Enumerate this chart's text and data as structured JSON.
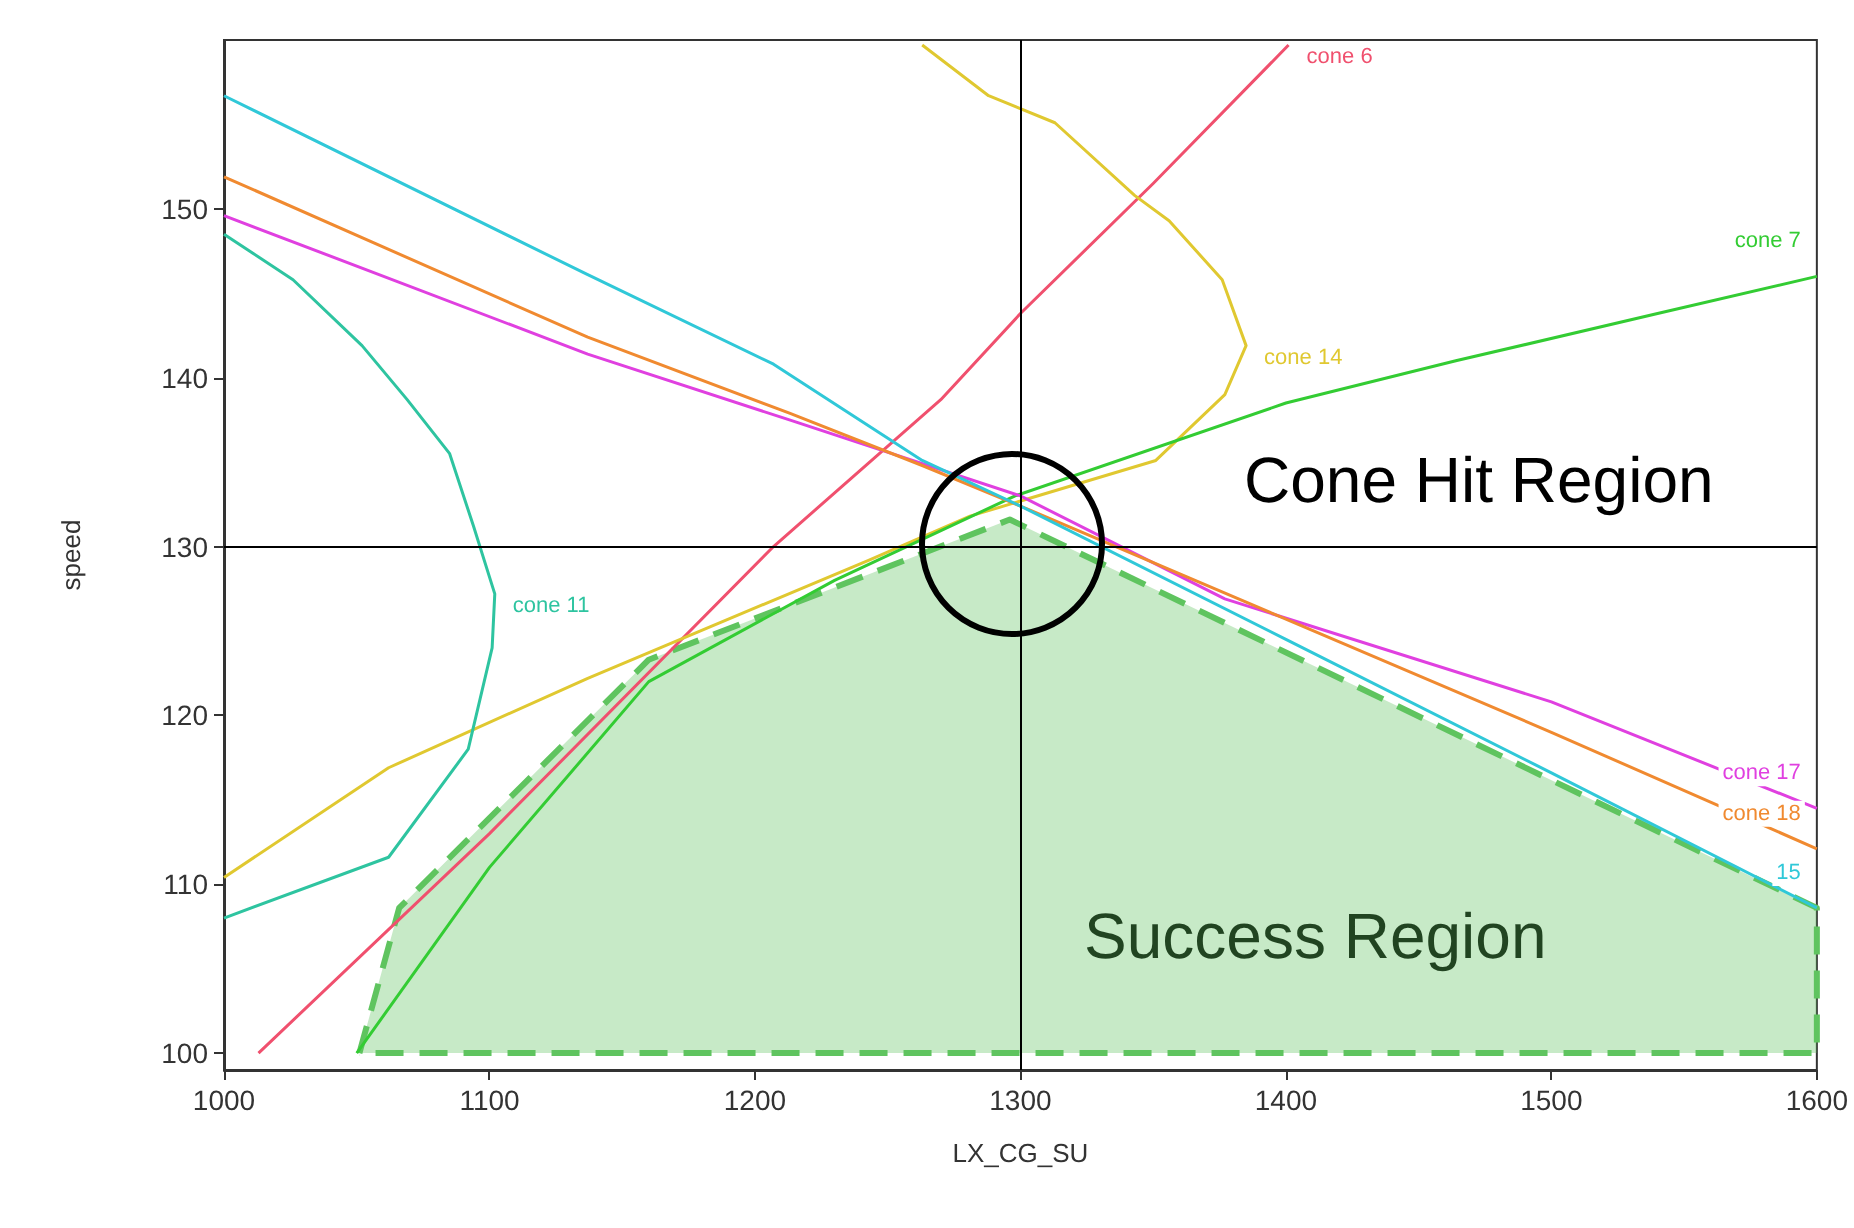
{
  "chart_data": {
    "type": "line",
    "xlabel": "LX_CG_SU",
    "ylabel": "speed",
    "xlim": [
      1000,
      1600
    ],
    "xticks": [
      1000,
      1100,
      1200,
      1300,
      1400,
      1500,
      1600
    ],
    "ylim": [
      99,
      160
    ],
    "yticks": [
      100,
      110,
      120,
      130,
      140,
      150
    ],
    "grid": false,
    "legend": false,
    "marker": "none",
    "series": [
      {
        "name": "cone 6",
        "color": "#f0506e",
        "x": [
          1013,
          1100,
          1207,
          1270,
          1300,
          1350,
          1401
        ],
        "values": [
          100,
          113,
          130,
          138.7,
          143.8,
          151.5,
          159.7
        ]
      },
      {
        "name": "cone 14",
        "color": "#e0c830",
        "x": [
          1000,
          1062,
          1137,
          1243,
          1281,
          1351,
          1377,
          1385,
          1376,
          1356,
          1343,
          1313,
          1288,
          1263
        ],
        "values": [
          110.4,
          116.9,
          122.2,
          129.2,
          131.8,
          135.1,
          139,
          141.9,
          145.8,
          149.3,
          150.8,
          155.1,
          156.7,
          159.7
        ]
      },
      {
        "name": "cone 7",
        "color": "#33cc33",
        "x": [
          1050,
          1100,
          1160,
          1230,
          1298,
          1400,
          1464,
          1540,
          1600
        ],
        "values": [
          100,
          111,
          122,
          128,
          133,
          138.5,
          141,
          143.8,
          146
        ]
      },
      {
        "name": "cone 11",
        "color": "#2ec4a0",
        "x": [
          1000,
          1026,
          1052,
          1069,
          1085,
          1094,
          1102,
          1101,
          1092,
          1062,
          1000
        ],
        "values": [
          148.5,
          145.8,
          141.9,
          138.7,
          135.5,
          131.2,
          127.2,
          124,
          118,
          111.6,
          108
        ]
      },
      {
        "name": "cone 17",
        "color": "#e040e0",
        "x": [
          1000,
          1137,
          1213,
          1300,
          1377,
          1500,
          1600
        ],
        "values": [
          149.6,
          141.4,
          137.5,
          133,
          126.9,
          120.8,
          114.5
        ]
      },
      {
        "name": "cone 18",
        "color": "#f08a30",
        "x": [
          1000,
          1137,
          1213,
          1263,
          1300,
          1400,
          1500,
          1600
        ],
        "values": [
          151.9,
          142.4,
          137.9,
          134.8,
          132.4,
          125.7,
          119,
          112.1
        ]
      },
      {
        "name": "15",
        "color": "#30c8d8",
        "x": [
          1000,
          1137,
          1207,
          1263,
          1300,
          1400,
          1500,
          1600
        ],
        "values": [
          156.7,
          146.1,
          140.8,
          135.1,
          132.4,
          124.5,
          116.6,
          108.6
        ]
      },
      {
        "type": "area",
        "color": "#5fc45f",
        "line_style": "dashed",
        "x": [
          1051,
          1066,
          1160,
          1296,
          1600,
          1600,
          1051
        ],
        "values": [
          100,
          108.6,
          123.3,
          131.6,
          108.6,
          100,
          100
        ]
      }
    ],
    "ref_lines": [
      {
        "axis": "x",
        "value": 1300,
        "color": "#000000"
      },
      {
        "axis": "y",
        "value": 130,
        "color": "#000000"
      }
    ],
    "annotations": [
      "Cone Hit Region",
      "Success Region"
    ]
  }
}
